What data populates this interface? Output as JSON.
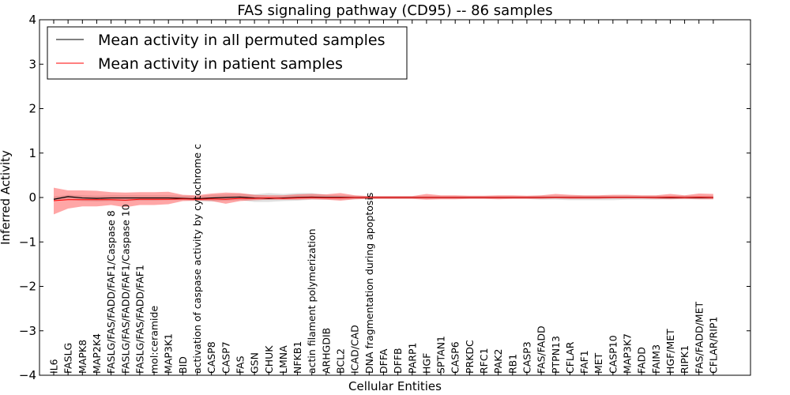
{
  "chart_data": {
    "type": "line",
    "title": "FAS signaling pathway (CD95) -- 86 samples",
    "xlabel": "Cellular Entities",
    "ylabel": "Inferred Activity",
    "ylim": [
      -4,
      4
    ],
    "yticks": [
      -4,
      -3,
      -2,
      -1,
      0,
      1,
      2,
      3,
      4
    ],
    "ytick_labels": [
      "−4",
      "−3",
      "−2",
      "−1",
      "0",
      "1",
      "2",
      "3",
      "4"
    ],
    "grid": false,
    "legend_position": "top-left",
    "categories": [
      "IL6",
      "FASLG",
      "MAPK8",
      "MAP2K4",
      "FASLG/FAS/FADD/FAF1/Caspase 8",
      "FASLG/FAS/FADD/FAF1/Caspase 10",
      "FASLG/FAS/FADD/FAF1",
      "mol:ceramide",
      "MAP3K1",
      "BID",
      "activation of caspase activity by cytochrome c",
      "CASP8",
      "CASP7",
      "FAS",
      "GSN",
      "CHUK",
      "LMNA",
      "NFKB1",
      "actin filament polymerization",
      "ARHGDIB",
      "BCL2",
      "ICAD/CAD",
      "DNA fragmentation during apoptosis",
      "DFFA",
      "DFFB",
      "PARP1",
      "HGF",
      "SPTAN1",
      "CASP6",
      "PRKDC",
      "RFC1",
      "PAK2",
      "RB1",
      "CASP3",
      "FAS/FADD",
      "PTPN13",
      "CFLAR",
      "FAF1",
      "MET",
      "CASP10",
      "MAP3K7",
      "FADD",
      "FAIM3",
      "HGF/MET",
      "RIPK1",
      "FAS/FADD/MET",
      "CFLAR/RIP1"
    ],
    "series": [
      {
        "name": "Mean activity in all permuted samples",
        "color": "#000000",
        "values": [
          -0.04,
          0.02,
          -0.01,
          -0.02,
          -0.01,
          -0.01,
          -0.01,
          -0.01,
          -0.01,
          -0.02,
          -0.03,
          -0.01,
          0.0,
          0.01,
          -0.01,
          -0.02,
          -0.01,
          0.0,
          0.01,
          0.0,
          0.0,
          0.0,
          0.0,
          0.0,
          0.0,
          0.0,
          0.0,
          0.0,
          0.0,
          0.0,
          0.0,
          0.0,
          0.0,
          0.0,
          0.0,
          0.0,
          0.0,
          0.0,
          0.0,
          0.0,
          0.0,
          0.0,
          0.0,
          0.0,
          0.0,
          0.0,
          0.0
        ],
        "band_lower": [
          -0.08,
          -0.05,
          -0.08,
          -0.09,
          -0.08,
          -0.08,
          -0.07,
          -0.07,
          -0.06,
          -0.06,
          -0.08,
          -0.09,
          -0.07,
          -0.06,
          -0.1,
          -0.1,
          -0.08,
          -0.07,
          -0.05,
          -0.05,
          -0.05,
          -0.04,
          -0.03,
          -0.03,
          -0.03,
          -0.03,
          -0.03,
          -0.03,
          -0.03,
          -0.03,
          -0.03,
          -0.03,
          -0.03,
          -0.03,
          -0.05,
          -0.05,
          -0.06,
          -0.06,
          -0.06,
          -0.06,
          -0.05,
          -0.05,
          -0.05,
          -0.04,
          -0.04,
          -0.04,
          -0.04
        ],
        "band_upper": [
          0.02,
          0.06,
          0.05,
          0.04,
          0.05,
          0.05,
          0.05,
          0.05,
          0.05,
          0.04,
          0.03,
          0.06,
          0.07,
          0.08,
          0.07,
          0.1,
          0.08,
          0.1,
          0.1,
          0.06,
          0.05,
          0.04,
          0.03,
          0.03,
          0.03,
          0.03,
          0.03,
          0.03,
          0.03,
          0.03,
          0.03,
          0.03,
          0.03,
          0.03,
          0.04,
          0.04,
          0.04,
          0.04,
          0.04,
          0.04,
          0.04,
          0.04,
          0.04,
          0.04,
          0.04,
          0.04,
          0.04
        ]
      },
      {
        "name": "Mean activity in patient samples",
        "color": "#ff0000",
        "values": [
          -0.07,
          -0.05,
          -0.05,
          -0.05,
          -0.05,
          -0.06,
          -0.04,
          -0.04,
          -0.04,
          -0.03,
          -0.04,
          -0.03,
          -0.04,
          -0.02,
          -0.02,
          -0.01,
          -0.02,
          -0.01,
          0.0,
          -0.01,
          -0.01,
          0.0,
          0.0,
          0.0,
          0.0,
          0.0,
          0.0,
          0.0,
          0.0,
          0.0,
          0.0,
          0.0,
          0.0,
          0.0,
          0.0,
          0.0,
          0.0,
          0.0,
          0.0,
          0.0,
          0.0,
          0.0,
          0.0,
          0.01,
          0.0,
          0.01,
          0.0
        ],
        "band_lower": [
          -0.38,
          -0.25,
          -0.2,
          -0.2,
          -0.17,
          -0.22,
          -0.17,
          -0.17,
          -0.15,
          -0.08,
          -0.07,
          -0.08,
          -0.14,
          -0.08,
          -0.06,
          -0.05,
          -0.05,
          -0.05,
          -0.04,
          -0.05,
          -0.07,
          -0.04,
          -0.03,
          -0.03,
          -0.03,
          -0.03,
          -0.05,
          -0.04,
          -0.04,
          -0.03,
          -0.03,
          -0.04,
          -0.03,
          -0.03,
          -0.03,
          -0.02,
          -0.03,
          -0.03,
          -0.03,
          -0.02,
          -0.02,
          -0.02,
          -0.03,
          -0.04,
          -0.03,
          -0.04,
          -0.04
        ],
        "band_upper": [
          0.22,
          0.16,
          0.16,
          0.15,
          0.12,
          0.11,
          0.12,
          0.12,
          0.13,
          0.06,
          0.05,
          0.09,
          0.11,
          0.1,
          0.06,
          0.05,
          0.05,
          0.07,
          0.08,
          0.07,
          0.1,
          0.05,
          0.03,
          0.03,
          0.03,
          0.03,
          0.08,
          0.05,
          0.05,
          0.04,
          0.04,
          0.05,
          0.05,
          0.04,
          0.05,
          0.08,
          0.06,
          0.05,
          0.05,
          0.06,
          0.06,
          0.05,
          0.05,
          0.08,
          0.05,
          0.09,
          0.08
        ]
      }
    ]
  }
}
